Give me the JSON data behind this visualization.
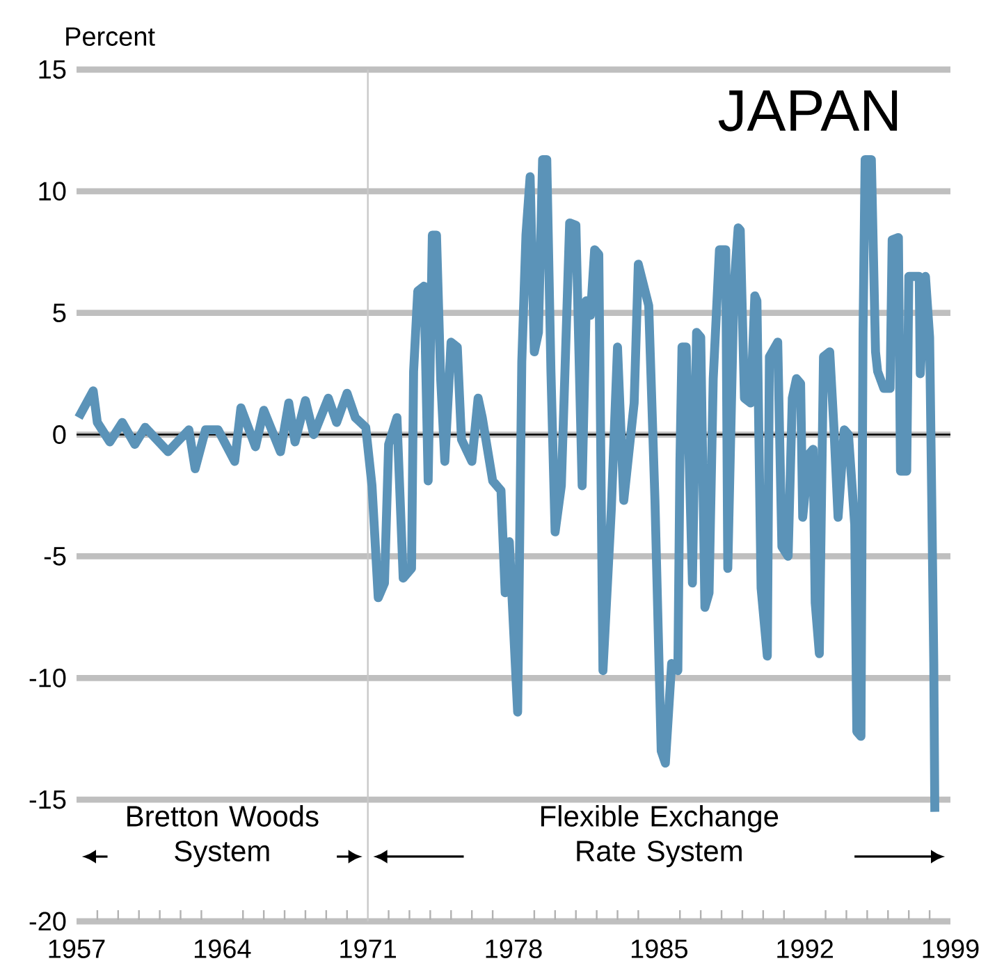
{
  "chart_data": {
    "type": "line",
    "title": "JAPAN",
    "ylabel": "Percent",
    "x": [
      1957.1,
      1957.8,
      1958.0,
      1958.6,
      1959.2,
      1959.8,
      1960.3,
      1961.4,
      1962.4,
      1962.7,
      1963.2,
      1963.8,
      1964.6,
      1964.9,
      1965.6,
      1966.0,
      1966.8,
      1967.2,
      1967.5,
      1968.0,
      1968.4,
      1969.1,
      1969.5,
      1970.0,
      1970.4,
      1970.9,
      1971.2,
      1971.5,
      1971.8,
      1972.0,
      1972.4,
      1972.7,
      1973.1,
      1973.2,
      1973.4,
      1973.7,
      1973.9,
      1974.1,
      1974.3,
      1974.5,
      1974.7,
      1975.0,
      1975.3,
      1975.5,
      1976.0,
      1976.3,
      1976.5,
      1977.0,
      1977.4,
      1977.6,
      1977.8,
      1978.2,
      1978.4,
      1978.6,
      1978.8,
      1979.0,
      1979.2,
      1979.4,
      1979.6,
      1979.8,
      1980.0,
      1980.3,
      1980.7,
      1981.0,
      1981.3,
      1981.5,
      1981.7,
      1981.9,
      1982.1,
      1982.3,
      1982.7,
      1983.0,
      1983.3,
      1983.8,
      1984.0,
      1984.5,
      1984.8,
      1985.1,
      1985.3,
      1985.6,
      1985.9,
      1986.0,
      1986.1,
      1986.3,
      1986.6,
      1986.8,
      1987.0,
      1987.2,
      1987.4,
      1987.6,
      1987.9,
      1988.2,
      1988.3,
      1988.6,
      1988.8,
      1988.9,
      1989.1,
      1989.4,
      1989.6,
      1989.7,
      1989.9,
      1990.2,
      1990.3,
      1990.7,
      1990.9,
      1991.2,
      1991.4,
      1991.6,
      1991.8,
      1991.9,
      1992.2,
      1992.4,
      1992.5,
      1992.7,
      1992.9,
      1993.2,
      1993.4,
      1993.6,
      1993.9,
      1994.1,
      1994.4,
      1994.5,
      1994.7,
      1994.8,
      1994.9,
      1995.2,
      1995.4,
      1995.5,
      1995.8,
      1996.1,
      1996.2,
      1996.5,
      1996.6,
      1996.9,
      1997.0,
      1997.5,
      1997.55,
      1997.8,
      1998.0,
      1998.1,
      1998.2,
      1998.25
    ],
    "series": [
      {
        "color": "#5b93b8",
        "values": [
          0.7,
          1.8,
          0.5,
          -0.3,
          0.5,
          -0.4,
          0.3,
          -0.7,
          0.2,
          -1.4,
          0.2,
          0.2,
          -1.1,
          1.1,
          -0.5,
          1.0,
          -0.7,
          1.3,
          -0.3,
          1.4,
          0.0,
          1.5,
          0.5,
          1.7,
          0.7,
          0.3,
          -2.1,
          -6.7,
          -6.1,
          -0.4,
          0.7,
          -5.9,
          -5.5,
          2.6,
          5.9,
          6.1,
          -1.9,
          8.2,
          8.2,
          2.3,
          -1.1,
          3.8,
          3.6,
          -0.2,
          -1.1,
          1.5,
          0.7,
          -1.9,
          -2.3,
          -6.5,
          -4.4,
          -11.4,
          3.0,
          8.2,
          10.6,
          3.4,
          4.2,
          11.3,
          11.3,
          2.6,
          -4.0,
          -2.1,
          8.7,
          8.6,
          -2.1,
          5.5,
          4.9,
          7.6,
          7.4,
          -9.7,
          -3.1,
          3.6,
          -2.7,
          1.3,
          7.0,
          5.3,
          -2.7,
          -13.0,
          -13.5,
          -9.4,
          -9.7,
          -1.1,
          3.6,
          3.6,
          -6.1,
          4.2,
          4.0,
          -7.1,
          -6.5,
          2.3,
          7.6,
          7.6,
          -5.5,
          6.1,
          8.5,
          8.4,
          1.5,
          1.3,
          5.7,
          5.5,
          -6.3,
          -9.1,
          3.2,
          3.8,
          -4.6,
          -5.0,
          1.5,
          2.3,
          2.1,
          -3.4,
          -0.8,
          -0.6,
          -6.9,
          -9.0,
          3.2,
          3.4,
          0.3,
          -3.4,
          0.2,
          0.0,
          -3.7,
          -12.2,
          -12.4,
          4.2,
          11.3,
          11.3,
          3.4,
          2.6,
          1.9,
          1.9,
          8.0,
          8.1,
          -1.5,
          -1.5,
          6.5,
          6.5,
          2.5,
          6.5,
          4.0,
          -2.5,
          -9.4,
          -15.5
        ]
      }
    ],
    "xlim": [
      1957,
      1999
    ],
    "xticks": [
      1957,
      1964,
      1971,
      1978,
      1985,
      1992,
      1999
    ],
    "ylim": [
      -20,
      15
    ],
    "yticks": [
      -20,
      -15,
      -10,
      -5,
      0,
      5,
      10,
      15
    ],
    "grid": "y",
    "line_style": "solid",
    "ref_lines": [
      {
        "axis": "x",
        "value": 1971,
        "color": "#c8c8c8"
      },
      {
        "axis": "y",
        "value": 0,
        "color": "#000000"
      }
    ],
    "annotations": [
      "Bretton Woods System",
      "Flexible Exchange Rate System"
    ]
  }
}
